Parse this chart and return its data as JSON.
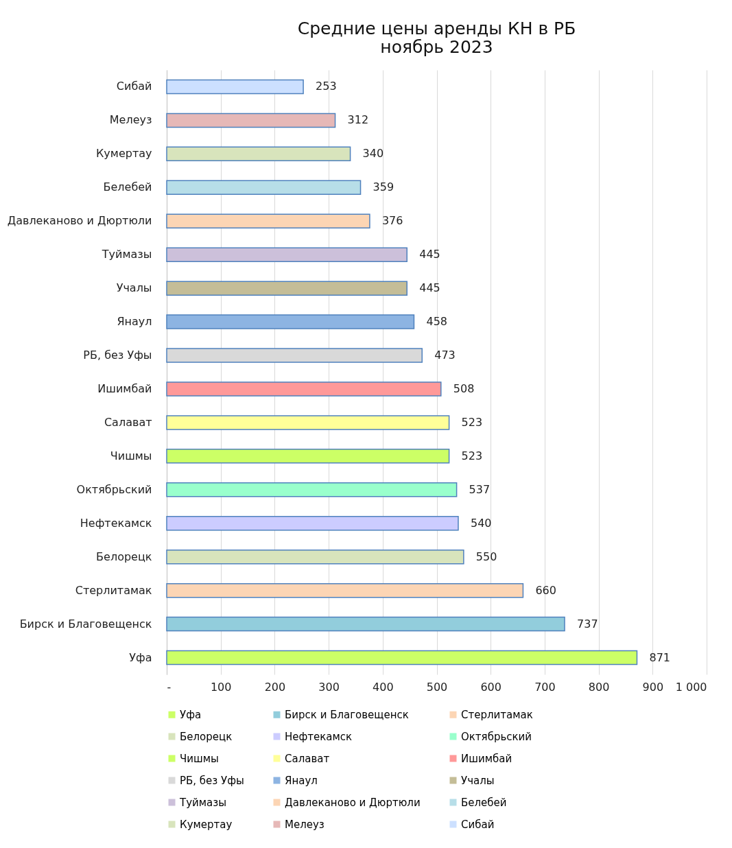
{
  "chart_data": {
    "type": "bar",
    "orientation": "horizontal",
    "stacked": true,
    "title": [
      "Средние цены аренды КН в РБ",
      "ноябрь 2023"
    ],
    "categories": [
      "Сибай",
      "Мелеуз",
      "Кумертау",
      "Белебей",
      "Давлеканово и Дюртюли",
      "Туймазы",
      "Учалы",
      "Янаул",
      "РБ, без Уфы",
      "Ишимбай",
      "Салават",
      "Чишмы",
      "Октябрьский",
      "Нефтекамск",
      "Белорецк",
      "Стерлитамак",
      "Бирск и Благовещенск",
      "Уфа"
    ],
    "series": [
      {
        "name": "Уфа",
        "color": "#ccff66",
        "values": [
          null,
          null,
          null,
          null,
          null,
          null,
          null,
          null,
          null,
          null,
          null,
          null,
          null,
          null,
          null,
          null,
          null,
          871
        ]
      },
      {
        "name": "Бирск и Благовещенск",
        "color": "#92cddc",
        "values": [
          null,
          null,
          null,
          null,
          null,
          null,
          null,
          null,
          null,
          null,
          null,
          null,
          null,
          null,
          null,
          null,
          737,
          null
        ]
      },
      {
        "name": "Стерлитамак",
        "color": "#fcd5b4",
        "values": [
          null,
          null,
          null,
          null,
          null,
          null,
          null,
          null,
          null,
          null,
          null,
          null,
          null,
          null,
          null,
          660,
          null,
          null
        ]
      },
      {
        "name": "Белорецк",
        "color": "#d8e4bc",
        "values": [
          null,
          null,
          null,
          null,
          null,
          null,
          null,
          null,
          null,
          null,
          null,
          null,
          null,
          null,
          550,
          null,
          null,
          null
        ]
      },
      {
        "name": "Нефтекамск",
        "color": "#ccccff",
        "values": [
          null,
          null,
          null,
          null,
          null,
          null,
          null,
          null,
          null,
          null,
          null,
          null,
          null,
          540,
          null,
          null,
          null,
          null
        ]
      },
      {
        "name": "Октябрьский",
        "color": "#99ffcc",
        "values": [
          null,
          null,
          null,
          null,
          null,
          null,
          null,
          null,
          null,
          null,
          null,
          null,
          537,
          null,
          null,
          null,
          null,
          null
        ]
      },
      {
        "name": "Чишмы",
        "color": "#ccff66",
        "values": [
          null,
          null,
          null,
          null,
          null,
          null,
          null,
          null,
          null,
          null,
          null,
          523,
          null,
          null,
          null,
          null,
          null,
          null
        ]
      },
      {
        "name": "Салават",
        "color": "#ffff99",
        "values": [
          null,
          null,
          null,
          null,
          null,
          null,
          null,
          null,
          null,
          null,
          523,
          null,
          null,
          null,
          null,
          null,
          null,
          null
        ]
      },
      {
        "name": "Ишимбай",
        "color": "#ff9999",
        "values": [
          null,
          null,
          null,
          null,
          null,
          null,
          null,
          null,
          null,
          508,
          null,
          null,
          null,
          null,
          null,
          null,
          null,
          null
        ]
      },
      {
        "name": "РБ, без Уфы",
        "color": "#d9d9d9",
        "values": [
          null,
          null,
          null,
          null,
          null,
          null,
          null,
          null,
          473,
          null,
          null,
          null,
          null,
          null,
          null,
          null,
          null,
          null
        ]
      },
      {
        "name": "Янаул",
        "color": "#8db4e2",
        "values": [
          null,
          null,
          null,
          null,
          null,
          null,
          null,
          458,
          null,
          null,
          null,
          null,
          null,
          null,
          null,
          null,
          null,
          null
        ]
      },
      {
        "name": "Учалы",
        "color": "#c4bd97",
        "values": [
          null,
          null,
          null,
          null,
          null,
          null,
          445,
          null,
          null,
          null,
          null,
          null,
          null,
          null,
          null,
          null,
          null,
          null
        ]
      },
      {
        "name": "Туймазы",
        "color": "#ccc0da",
        "values": [
          null,
          null,
          null,
          null,
          null,
          445,
          null,
          null,
          null,
          null,
          null,
          null,
          null,
          null,
          null,
          null,
          null,
          null
        ]
      },
      {
        "name": "Давлеканово и Дюртюли",
        "color": "#fcd5b4",
        "values": [
          null,
          null,
          null,
          null,
          376,
          null,
          null,
          null,
          null,
          null,
          null,
          null,
          null,
          null,
          null,
          null,
          null,
          null
        ]
      },
      {
        "name": "Белебей",
        "color": "#b7dee8",
        "values": [
          null,
          null,
          null,
          359,
          null,
          null,
          null,
          null,
          null,
          null,
          null,
          null,
          null,
          null,
          null,
          null,
          null,
          null
        ]
      },
      {
        "name": "Кумертау",
        "color": "#d8e4bc",
        "values": [
          null,
          null,
          340,
          null,
          null,
          null,
          null,
          null,
          null,
          null,
          null,
          null,
          null,
          null,
          null,
          null,
          null,
          null
        ]
      },
      {
        "name": "Мелеуз",
        "color": "#e6b8b7",
        "values": [
          null,
          312,
          null,
          null,
          null,
          null,
          null,
          null,
          null,
          null,
          null,
          null,
          null,
          null,
          null,
          null,
          null,
          null
        ]
      },
      {
        "name": "Сибай",
        "color": "#cce0ff",
        "values": [
          253,
          null,
          null,
          null,
          null,
          null,
          null,
          null,
          null,
          null,
          null,
          null,
          null,
          null,
          null,
          null,
          null,
          null
        ]
      }
    ],
    "xlim": [
      0,
      1000
    ],
    "xticks": [
      {
        "value": 0,
        "label": "-"
      },
      100,
      200,
      300,
      400,
      500,
      600,
      700,
      800,
      900,
      {
        "value": 1000,
        "label": "1 000"
      }
    ],
    "grid": "x",
    "data_labels": true,
    "legend": "bottom"
  }
}
